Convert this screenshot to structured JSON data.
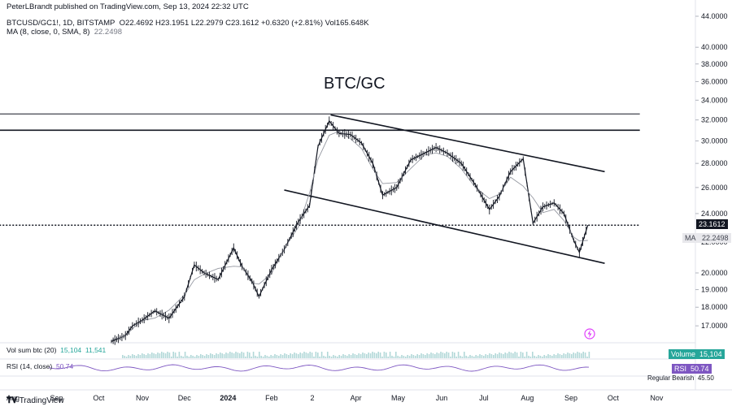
{
  "header": {
    "publisher": "PeterLBrandt published on TradingView.com, Sep 13, 2024 22:32 UTC",
    "symbol": "BTCUSD/GC1!, 1D, BITSTAMP",
    "ohlc": "O22.4692  H23.1951  L22.2979  C23.1612  +0.6320 (+2.81%)  Vol165.648K",
    "ma_label": "MA (8, close, 0, SMA, 8)",
    "ma_value": "22.2498"
  },
  "annotation": "BTC/GC",
  "price_badge": "23.1612",
  "ma_badge_label": "MA",
  "ma_badge_value": "22.2498",
  "volume_indicator": {
    "label": "Vol sum btc (20)",
    "v1": "15,104",
    "v2": "11,541",
    "badge_label": "Volume",
    "badge_value": "15,104"
  },
  "rsi_indicator": {
    "label": "RSI (14, close)",
    "value": "50.74",
    "badge_label": "RSI",
    "badge_value": "50.74",
    "extra": "Regular Bearish",
    "extra_value": "45.50"
  },
  "footer": {
    "logo": "TradingView"
  },
  "colors": {
    "candle_up": "#131722",
    "candle_down": "#131722",
    "ma_line": "#9598a1",
    "rsi_line": "#7e57c2",
    "volume_bar": "#b2d8d8",
    "accent": "#2962ff"
  },
  "chart_data": {
    "type": "line",
    "title": "BTC/GC",
    "y_scale": "log",
    "ylim": [
      16.3,
      44.0
    ],
    "y_ticks": [
      "44.0000",
      "40.0000",
      "38.0000",
      "36.0000",
      "34.0000",
      "32.0000",
      "30.0000",
      "28.0000",
      "26.0000",
      "24.0000",
      "22.0000",
      "20.0000",
      "19.0000",
      "18.0000",
      "17.0000"
    ],
    "x_ticks": [
      "Aug",
      "Sep",
      "Oct",
      "Nov",
      "Dec",
      "2024",
      "Feb",
      "2",
      "Apr",
      "May",
      "Jun",
      "Jul",
      "Aug",
      "Sep",
      "Oct",
      "Nov"
    ],
    "series": [
      {
        "x": [
          "2023-10-10",
          "2023-10-20",
          "2023-10-25",
          "2023-11-01",
          "2023-11-10",
          "2023-11-20",
          "2023-12-01",
          "2023-12-08",
          "2023-12-15",
          "2023-12-25",
          "2024-01-05",
          "2024-01-11",
          "2024-01-18",
          "2024-01-23",
          "2024-02-01",
          "2024-02-10",
          "2024-02-20",
          "2024-02-28",
          "2024-03-05",
          "2024-03-13",
          "2024-03-20",
          "2024-03-28",
          "2024-04-05",
          "2024-04-13",
          "2024-04-20",
          "2024-04-30",
          "2024-05-10",
          "2024-05-20",
          "2024-05-28",
          "2024-06-05",
          "2024-06-15",
          "2024-06-25",
          "2024-07-05",
          "2024-07-12",
          "2024-07-20",
          "2024-07-29",
          "2024-08-05",
          "2024-08-12",
          "2024-08-20",
          "2024-08-27",
          "2024-09-03",
          "2024-09-07",
          "2024-09-13"
        ],
        "values": [
          16.2,
          16.5,
          17.0,
          17.3,
          17.8,
          17.4,
          18.6,
          20.5,
          20.0,
          19.6,
          21.6,
          20.4,
          19.5,
          18.6,
          20.2,
          21.5,
          23.4,
          24.6,
          29.5,
          31.9,
          30.7,
          30.6,
          29.8,
          28.0,
          25.4,
          26.0,
          28.3,
          28.9,
          29.4,
          28.9,
          28.0,
          26.2,
          24.3,
          25.3,
          27.3,
          28.4,
          23.3,
          24.5,
          24.8,
          24.0,
          22.1,
          21.3,
          23.16
        ]
      }
    ],
    "trendlines": [
      {
        "name": "horizontal resistance upper",
        "points": [
          [
            "2023-07-20",
            32.6
          ],
          [
            "2024-10-20",
            32.6
          ]
        ]
      },
      {
        "name": "horizontal resistance lower",
        "points": [
          [
            "2023-07-20",
            31.0
          ],
          [
            "2024-10-20",
            31.0
          ]
        ]
      },
      {
        "name": "dotted last price",
        "points": [
          [
            "2023-07-20",
            23.16
          ],
          [
            "2024-10-20",
            23.16
          ]
        ]
      },
      {
        "name": "channel upper",
        "points": [
          [
            "2024-03-14",
            32.5
          ],
          [
            "2024-09-25",
            27.3
          ]
        ]
      },
      {
        "name": "channel lower",
        "points": [
          [
            "2024-02-10",
            25.8
          ],
          [
            "2024-09-25",
            20.6
          ]
        ]
      }
    ]
  }
}
